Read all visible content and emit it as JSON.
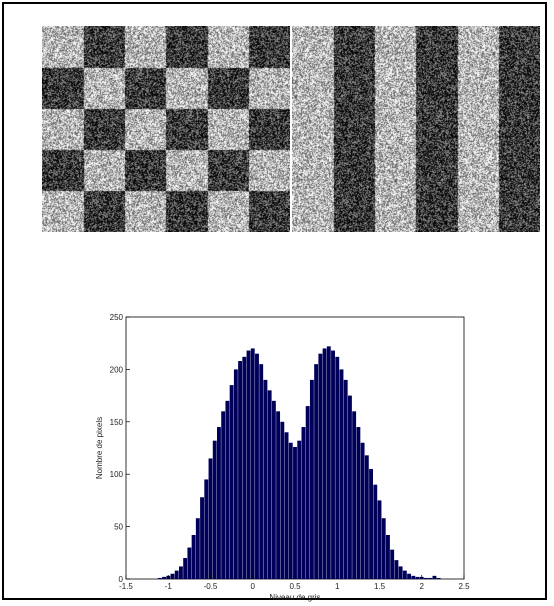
{
  "images": {
    "left": {
      "pattern": "checkerboard",
      "rows": 5,
      "cols": 6,
      "colors": {
        "dark": "#2b2b2b",
        "light": "#c8c8c8"
      }
    },
    "right": {
      "pattern": "vertical-stripes",
      "stripes": 6,
      "colors": {
        "dark": "#2b2b2b",
        "light": "#c8c8c8"
      }
    }
  },
  "chart_data": {
    "type": "bar",
    "title": "",
    "xlabel": "Niveau de gris",
    "ylabel": "Nombre de pixels",
    "xlim": [
      -1.5,
      2.5
    ],
    "ylim": [
      0,
      250
    ],
    "xticks": [
      "-1.5",
      "-1",
      "-0.5",
      "0",
      "0.5",
      "1",
      "1.5",
      "2",
      "2.5"
    ],
    "yticks": [
      "0",
      "50",
      "100",
      "150",
      "200",
      "250"
    ],
    "bar_color": "#00005a",
    "grid": false,
    "x": [
      -1.1,
      -1.05,
      -1,
      -0.95,
      -0.9,
      -0.85,
      -0.8,
      -0.75,
      -0.7,
      -0.65,
      -0.6,
      -0.55,
      -0.5,
      -0.45,
      -0.4,
      -0.35,
      -0.3,
      -0.25,
      -0.2,
      -0.15,
      -0.1,
      -0.05,
      0,
      0.05,
      0.1,
      0.15,
      0.2,
      0.25,
      0.3,
      0.35,
      0.4,
      0.45,
      0.5,
      0.55,
      0.6,
      0.65,
      0.7,
      0.75,
      0.8,
      0.85,
      0.9,
      0.95,
      1,
      1.05,
      1.1,
      1.15,
      1.2,
      1.25,
      1.3,
      1.35,
      1.4,
      1.45,
      1.5,
      1.55,
      1.6,
      1.65,
      1.7,
      1.75,
      1.8,
      1.85,
      1.9,
      1.95,
      2,
      2.05,
      2.1,
      2.15,
      2.2
    ],
    "values": [
      1,
      2,
      3,
      5,
      8,
      12,
      20,
      30,
      42,
      58,
      78,
      95,
      115,
      132,
      145,
      160,
      170,
      185,
      200,
      208,
      212,
      218,
      220,
      215,
      205,
      190,
      180,
      170,
      160,
      150,
      140,
      130,
      126,
      132,
      145,
      165,
      190,
      205,
      215,
      220,
      222,
      218,
      212,
      200,
      190,
      175,
      160,
      145,
      130,
      118,
      105,
      90,
      75,
      58,
      42,
      28,
      18,
      12,
      8,
      5,
      3,
      2,
      2,
      1,
      1,
      3,
      1
    ]
  }
}
